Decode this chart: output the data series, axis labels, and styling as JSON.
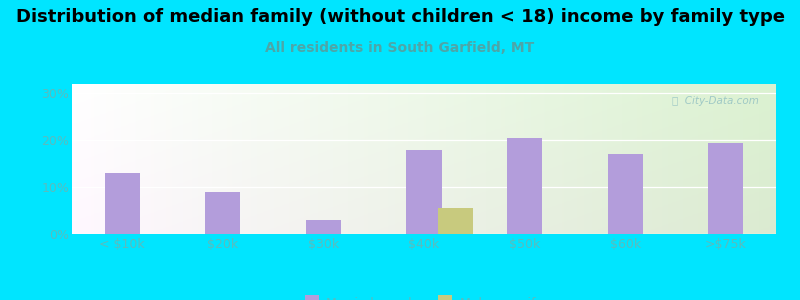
{
  "title": "Distribution of median family (without children < 18) income by family type",
  "subtitle": "All residents in South Garfield, MT",
  "categories": [
    "< $10k",
    "$20k",
    "$30k",
    "$40k",
    "$50k",
    "$60k",
    ">$75k"
  ],
  "married_couple": [
    13.0,
    9.0,
    3.0,
    18.0,
    20.5,
    17.0,
    19.5
  ],
  "male_no_wife": [
    0,
    0,
    0,
    5.5,
    0,
    0,
    0
  ],
  "bar_color_married": "#b39ddb",
  "bar_color_male": "#c8ca7e",
  "background_outer": "#00e5ff",
  "title_color": "#000000",
  "subtitle_color": "#4da6a8",
  "tick_color": "#5abcbe",
  "ylim": [
    0,
    32
  ],
  "yticks": [
    0,
    10,
    20,
    30
  ],
  "ytick_labels": [
    "0%",
    "10%",
    "20%",
    "30%"
  ],
  "bar_width": 0.35,
  "title_fontsize": 13,
  "subtitle_fontsize": 10,
  "tick_fontsize": 9,
  "legend_fontsize": 9,
  "watermark": "ⓘ  City-Data.com"
}
